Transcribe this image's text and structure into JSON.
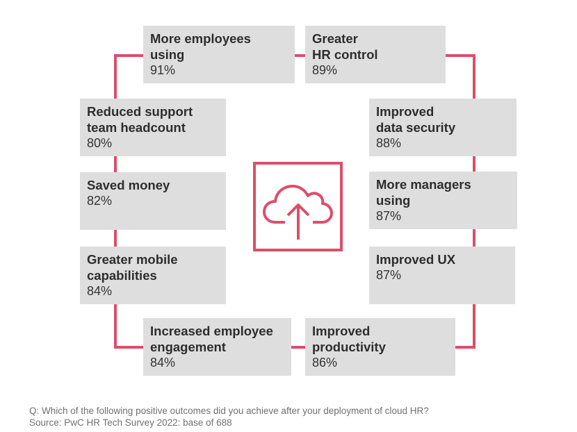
{
  "diagram": {
    "center_icon": "cloud-upload-icon",
    "accent_color": "#dc4e6a",
    "box_color": "#dedede",
    "outcomes": [
      {
        "label": "More employees\nusing",
        "value": "91%"
      },
      {
        "label": "Greater\nHR control",
        "value": "89%"
      },
      {
        "label": "Improved\ndata security",
        "value": "88%"
      },
      {
        "label": "More managers\nusing",
        "value": "87%"
      },
      {
        "label": "Improved UX",
        "value": "87%"
      },
      {
        "label": "Improved\nproductivity",
        "value": "86%"
      },
      {
        "label": "Increased employee\nengagement",
        "value": "84%"
      },
      {
        "label": "Greater mobile\ncapabilities",
        "value": "84%"
      },
      {
        "label": "Saved money",
        "value": "82%"
      },
      {
        "label": "Reduced support\nteam headcount",
        "value": "80%"
      }
    ]
  },
  "footer": {
    "question": "Q: Which of the following positive outcomes did you achieve after your deployment of cloud HR?",
    "source": "Source: PwC HR Tech Survey 2022: base of 688"
  }
}
